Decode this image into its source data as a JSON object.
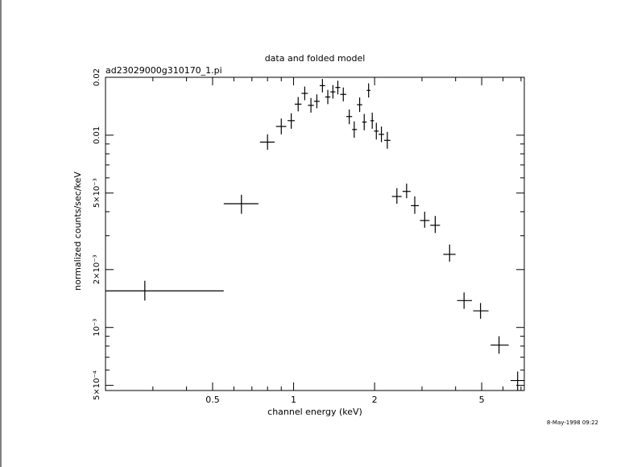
{
  "chart_data": {
    "type": "scatter",
    "title": "data and folded model",
    "subtitle": "ad23029000g310170_1.pi",
    "xlabel": "channel energy (keV)",
    "ylabel": "normalized counts/sec/keV",
    "x_scale": "log",
    "y_scale": "log",
    "xlim": [
      0.2,
      7.2
    ],
    "ylim": [
      0.00047,
      0.02
    ],
    "x_tick_labels": [
      {
        "value": 0.5,
        "label": "0.5"
      },
      {
        "value": 1,
        "label": "1"
      },
      {
        "value": 2,
        "label": "2"
      },
      {
        "value": 5,
        "label": "5"
      }
    ],
    "y_tick_labels": [
      {
        "value": 0.0005,
        "label": "5×10⁻⁴"
      },
      {
        "value": 0.001,
        "label": "10⁻³"
      },
      {
        "value": 0.002,
        "label": "2×10⁻³"
      },
      {
        "value": 0.005,
        "label": "5×10⁻³"
      },
      {
        "value": 0.01,
        "label": "0.01"
      },
      {
        "value": 0.02,
        "label": "0.02"
      }
    ],
    "grid": false,
    "legend": "none",
    "points": [
      {
        "x": 0.28,
        "xlo": 0.2,
        "xhi": 0.55,
        "y": 0.00155,
        "ylo": 0.00138,
        "yhi": 0.00175
      },
      {
        "x": 0.64,
        "xlo": 0.55,
        "xhi": 0.74,
        "y": 0.0044,
        "ylo": 0.0039,
        "yhi": 0.0049
      },
      {
        "x": 0.8,
        "xlo": 0.75,
        "xhi": 0.85,
        "y": 0.0092,
        "ylo": 0.0084,
        "yhi": 0.0101
      },
      {
        "x": 0.9,
        "xlo": 0.86,
        "xhi": 0.94,
        "y": 0.0111,
        "ylo": 0.0101,
        "yhi": 0.0122
      },
      {
        "x": 0.98,
        "xlo": 0.95,
        "xhi": 1.01,
        "y": 0.0119,
        "ylo": 0.0108,
        "yhi": 0.013
      },
      {
        "x": 1.04,
        "xlo": 1.01,
        "xhi": 1.07,
        "y": 0.0145,
        "ylo": 0.0133,
        "yhi": 0.0158
      },
      {
        "x": 1.1,
        "xlo": 1.07,
        "xhi": 1.13,
        "y": 0.0165,
        "ylo": 0.0152,
        "yhi": 0.0179
      },
      {
        "x": 1.16,
        "xlo": 1.13,
        "xhi": 1.19,
        "y": 0.0143,
        "ylo": 0.0131,
        "yhi": 0.0156
      },
      {
        "x": 1.22,
        "xlo": 1.19,
        "xhi": 1.25,
        "y": 0.015,
        "ylo": 0.0138,
        "yhi": 0.0163
      },
      {
        "x": 1.28,
        "xlo": 1.25,
        "xhi": 1.31,
        "y": 0.0181,
        "ylo": 0.0167,
        "yhi": 0.0196
      },
      {
        "x": 1.34,
        "xlo": 1.31,
        "xhi": 1.37,
        "y": 0.0158,
        "ylo": 0.0145,
        "yhi": 0.0172
      },
      {
        "x": 1.4,
        "xlo": 1.37,
        "xhi": 1.43,
        "y": 0.0168,
        "ylo": 0.0155,
        "yhi": 0.0182
      },
      {
        "x": 1.46,
        "xlo": 1.43,
        "xhi": 1.49,
        "y": 0.0177,
        "ylo": 0.0163,
        "yhi": 0.0192
      },
      {
        "x": 1.53,
        "xlo": 1.49,
        "xhi": 1.57,
        "y": 0.0163,
        "ylo": 0.015,
        "yhi": 0.0177
      },
      {
        "x": 1.61,
        "xlo": 1.57,
        "xhi": 1.65,
        "y": 0.0125,
        "ylo": 0.0114,
        "yhi": 0.0136
      },
      {
        "x": 1.68,
        "xlo": 1.65,
        "xhi": 1.72,
        "y": 0.0107,
        "ylo": 0.0097,
        "yhi": 0.0118
      },
      {
        "x": 1.76,
        "xlo": 1.72,
        "xhi": 1.8,
        "y": 0.0144,
        "ylo": 0.0132,
        "yhi": 0.0157
      },
      {
        "x": 1.83,
        "xlo": 1.8,
        "xhi": 1.87,
        "y": 0.0117,
        "ylo": 0.0106,
        "yhi": 0.0129
      },
      {
        "x": 1.9,
        "xlo": 1.87,
        "xhi": 1.93,
        "y": 0.0171,
        "ylo": 0.0157,
        "yhi": 0.0186
      },
      {
        "x": 1.96,
        "xlo": 1.93,
        "xhi": 1.99,
        "y": 0.0119,
        "ylo": 0.0108,
        "yhi": 0.0131
      },
      {
        "x": 2.03,
        "xlo": 1.99,
        "xhi": 2.07,
        "y": 0.0105,
        "ylo": 0.0095,
        "yhi": 0.0116
      },
      {
        "x": 2.12,
        "xlo": 2.07,
        "xhi": 2.17,
        "y": 0.0101,
        "ylo": 0.0092,
        "yhi": 0.0111
      },
      {
        "x": 2.23,
        "xlo": 2.17,
        "xhi": 2.29,
        "y": 0.0094,
        "ylo": 0.0085,
        "yhi": 0.0104
      },
      {
        "x": 2.42,
        "xlo": 2.32,
        "xhi": 2.52,
        "y": 0.0048,
        "ylo": 0.0044,
        "yhi": 0.0053
      },
      {
        "x": 2.63,
        "xlo": 2.54,
        "xhi": 2.72,
        "y": 0.0051,
        "ylo": 0.0047,
        "yhi": 0.0056
      },
      {
        "x": 2.82,
        "xlo": 2.73,
        "xhi": 2.92,
        "y": 0.0043,
        "ylo": 0.0039,
        "yhi": 0.0048
      },
      {
        "x": 3.07,
        "xlo": 2.95,
        "xhi": 3.2,
        "y": 0.0036,
        "ylo": 0.0033,
        "yhi": 0.004
      },
      {
        "x": 3.36,
        "xlo": 3.22,
        "xhi": 3.5,
        "y": 0.0034,
        "ylo": 0.0031,
        "yhi": 0.0038
      },
      {
        "x": 3.8,
        "xlo": 3.6,
        "xhi": 4.0,
        "y": 0.0024,
        "ylo": 0.0022,
        "yhi": 0.0027
      },
      {
        "x": 4.3,
        "xlo": 4.05,
        "xhi": 4.6,
        "y": 0.00138,
        "ylo": 0.00125,
        "yhi": 0.00152
      },
      {
        "x": 4.95,
        "xlo": 4.65,
        "xhi": 5.3,
        "y": 0.00122,
        "ylo": 0.00111,
        "yhi": 0.00134
      },
      {
        "x": 5.8,
        "xlo": 5.4,
        "xhi": 6.3,
        "y": 0.00081,
        "ylo": 0.00073,
        "yhi": 0.0009
      },
      {
        "x": 6.8,
        "xlo": 6.4,
        "xhi": 7.2,
        "y": 0.00053,
        "ylo": 0.00047,
        "yhi": 0.00059
      }
    ]
  },
  "footer": {
    "timestamp": "8-May-1998 09:22"
  }
}
